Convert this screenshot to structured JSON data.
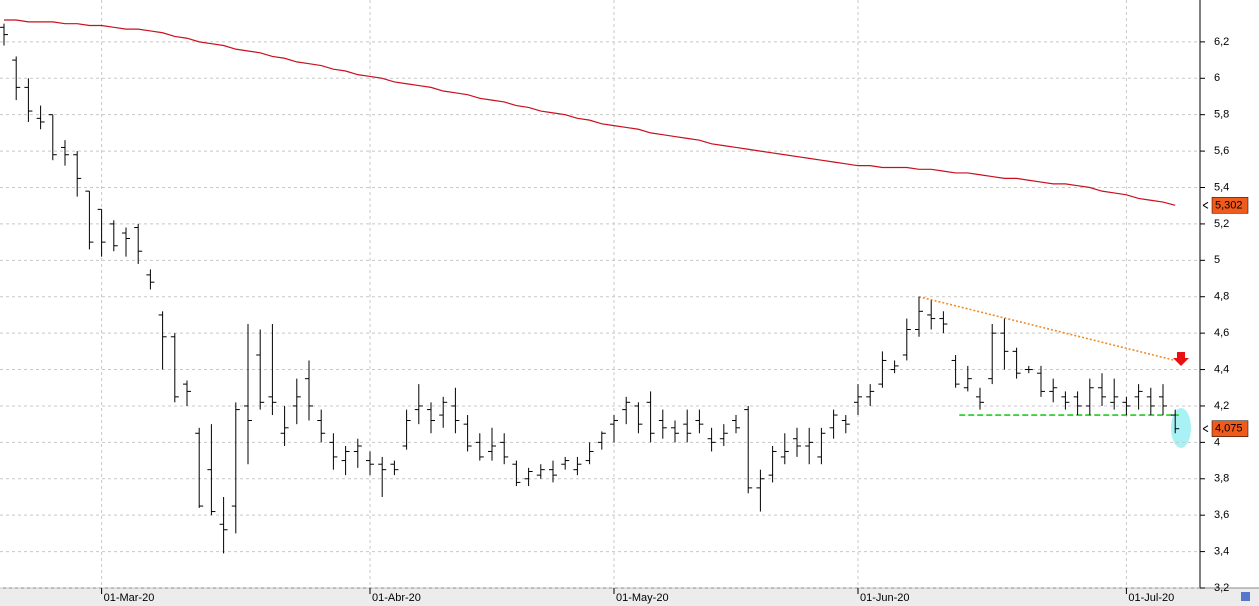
{
  "chart_data": {
    "type": "ohlc",
    "categories": [
      null,
      null,
      null,
      null,
      null,
      null,
      null,
      null,
      "01-Mar-20",
      null,
      null,
      null,
      null,
      null,
      null,
      null,
      null,
      null,
      null,
      null,
      null,
      null,
      null,
      null,
      null,
      null,
      null,
      null,
      null,
      null,
      "01-Abr-20",
      null,
      null,
      null,
      null,
      null,
      null,
      null,
      null,
      null,
      null,
      null,
      null,
      null,
      null,
      null,
      null,
      null,
      null,
      null,
      "01-May-20",
      null,
      null,
      null,
      null,
      null,
      null,
      null,
      null,
      null,
      null,
      null,
      null,
      null,
      null,
      null,
      null,
      null,
      null,
      null,
      "01-Jun-20",
      null,
      null,
      null,
      null,
      null,
      null,
      null,
      null,
      null,
      null,
      null,
      null,
      null,
      null,
      null,
      null,
      null,
      null,
      null,
      null,
      null,
      "01-Jul-20",
      null,
      null,
      null,
      null
    ],
    "ohlc": {
      "color": "#000000",
      "open": [
        6.28,
        6.1,
        5.95,
        5.78,
        5.8,
        5.62,
        5.58,
        5.38,
        5.28,
        5.2,
        5.15,
        5.18,
        4.92,
        4.7,
        4.58,
        4.32,
        4.05,
        3.85,
        3.55,
        3.65,
        4.2,
        4.48,
        4.25,
        4.05,
        4.2,
        4.35,
        4.12,
        4.0,
        3.9,
        3.95,
        3.9,
        3.88,
        3.88,
        3.98,
        4.18,
        4.18,
        4.15,
        4.2,
        4.1,
        4.0,
        3.95,
        4.0,
        3.88,
        3.8,
        3.82,
        3.85,
        3.88,
        3.85,
        3.9,
        4.0,
        4.1,
        4.18,
        4.2,
        4.22,
        4.12,
        4.08,
        4.1,
        4.12,
        4.02,
        4.02,
        4.12,
        4.18,
        3.75,
        3.82,
        3.92,
        4.02,
        3.98,
        3.92,
        4.08,
        4.12,
        4.22,
        4.25,
        4.32,
        4.4,
        4.48,
        4.62,
        4.7,
        4.68,
        4.45,
        4.3,
        4.25,
        4.35,
        4.6,
        4.5,
        4.4,
        4.38,
        4.28,
        4.25,
        4.25,
        4.2,
        4.3,
        4.22,
        4.22,
        4.25,
        4.25,
        4.25,
        4.15
      ],
      "high": [
        6.3,
        6.12,
        6.0,
        5.85,
        5.8,
        5.66,
        5.6,
        5.38,
        5.28,
        5.22,
        5.18,
        5.2,
        4.95,
        4.72,
        4.6,
        4.34,
        4.08,
        4.1,
        3.7,
        4.22,
        4.65,
        4.62,
        4.65,
        4.2,
        4.35,
        4.45,
        4.18,
        4.05,
        3.98,
        4.02,
        3.95,
        3.92,
        3.9,
        4.18,
        4.32,
        4.22,
        4.25,
        4.3,
        4.15,
        4.05,
        4.08,
        4.05,
        3.9,
        3.86,
        3.88,
        3.9,
        3.92,
        3.92,
        4.0,
        4.06,
        4.15,
        4.25,
        4.22,
        4.28,
        4.18,
        4.12,
        4.18,
        4.18,
        4.08,
        4.1,
        4.15,
        4.2,
        3.85,
        3.98,
        4.05,
        4.08,
        4.08,
        4.08,
        4.18,
        4.15,
        4.32,
        4.32,
        4.5,
        4.45,
        4.68,
        4.8,
        4.78,
        4.72,
        4.48,
        4.42,
        4.3,
        4.65,
        4.68,
        4.52,
        4.42,
        4.42,
        4.35,
        4.28,
        4.28,
        4.35,
        4.38,
        4.35,
        4.25,
        4.32,
        4.3,
        4.32,
        4.18
      ],
      "low": [
        6.18,
        5.88,
        5.76,
        5.72,
        5.55,
        5.52,
        5.35,
        5.06,
        5.02,
        5.05,
        5.02,
        4.98,
        4.84,
        4.4,
        4.22,
        4.2,
        3.64,
        3.6,
        3.39,
        3.5,
        3.88,
        4.18,
        4.15,
        3.98,
        4.1,
        4.12,
        4.0,
        3.85,
        3.82,
        3.86,
        3.82,
        3.7,
        3.82,
        3.96,
        4.1,
        4.05,
        4.08,
        4.05,
        3.95,
        3.9,
        3.9,
        3.88,
        3.76,
        3.76,
        3.8,
        3.78,
        3.85,
        3.82,
        3.88,
        3.96,
        4.0,
        4.1,
        4.05,
        4.0,
        4.02,
        4.0,
        4.0,
        4.05,
        3.95,
        3.98,
        4.05,
        3.72,
        3.62,
        3.78,
        3.88,
        3.92,
        3.88,
        3.88,
        4.02,
        4.05,
        4.15,
        4.2,
        4.3,
        4.38,
        4.45,
        4.58,
        4.62,
        4.6,
        4.3,
        4.28,
        4.18,
        4.32,
        4.4,
        4.35,
        4.38,
        4.25,
        4.22,
        4.18,
        4.15,
        4.15,
        4.2,
        4.18,
        4.15,
        4.18,
        4.15,
        4.15,
        4.05
      ],
      "close": [
        6.24,
        5.95,
        5.82,
        5.76,
        5.58,
        5.58,
        5.45,
        5.1,
        5.1,
        5.08,
        5.12,
        5.05,
        4.88,
        4.58,
        4.25,
        4.28,
        3.65,
        3.62,
        3.52,
        4.18,
        4.12,
        4.22,
        4.22,
        4.08,
        4.25,
        4.2,
        4.05,
        3.92,
        3.95,
        3.98,
        3.88,
        3.85,
        3.85,
        4.12,
        4.2,
        4.12,
        4.22,
        4.12,
        3.98,
        3.92,
        3.98,
        3.92,
        3.78,
        3.84,
        3.85,
        3.82,
        3.9,
        3.88,
        3.95,
        4.05,
        4.12,
        4.22,
        4.1,
        4.05,
        4.08,
        4.05,
        4.05,
        4.1,
        4.0,
        4.05,
        4.08,
        3.75,
        3.8,
        3.95,
        3.95,
        3.98,
        4.0,
        4.05,
        4.15,
        4.1,
        4.25,
        4.28,
        4.45,
        4.42,
        4.62,
        4.72,
        4.68,
        4.65,
        4.32,
        4.35,
        4.22,
        4.6,
        4.5,
        4.38,
        4.4,
        4.28,
        4.3,
        4.22,
        4.2,
        4.3,
        4.25,
        4.25,
        4.2,
        4.28,
        4.2,
        4.2,
        4.075
      ],
      "last_label": "4,075",
      "label_color": "#f05a1a"
    },
    "lines": [
      {
        "color": "#c8101e",
        "values": [
          6.32,
          6.32,
          6.31,
          6.31,
          6.31,
          6.3,
          6.3,
          6.29,
          6.29,
          6.28,
          6.27,
          6.27,
          6.26,
          6.25,
          6.23,
          6.22,
          6.2,
          6.19,
          6.18,
          6.16,
          6.15,
          6.14,
          6.12,
          6.11,
          6.09,
          6.08,
          6.07,
          6.05,
          6.04,
          6.02,
          6.01,
          6.0,
          5.98,
          5.97,
          5.96,
          5.95,
          5.93,
          5.92,
          5.91,
          5.89,
          5.88,
          5.87,
          5.85,
          5.84,
          5.82,
          5.81,
          5.8,
          5.78,
          5.77,
          5.75,
          5.74,
          5.73,
          5.72,
          5.7,
          5.69,
          5.68,
          5.67,
          5.66,
          5.64,
          5.63,
          5.62,
          5.61,
          5.6,
          5.59,
          5.58,
          5.57,
          5.56,
          5.55,
          5.54,
          5.53,
          5.52,
          5.52,
          5.51,
          5.51,
          5.51,
          5.5,
          5.5,
          5.49,
          5.48,
          5.48,
          5.47,
          5.46,
          5.45,
          5.45,
          5.44,
          5.43,
          5.42,
          5.42,
          5.41,
          5.4,
          5.38,
          5.37,
          5.36,
          5.34,
          5.33,
          5.32,
          5.302
        ],
        "last_label": "5,302",
        "label_color": "#f05a1a"
      }
    ],
    "trendlines": [
      {
        "color": "#f08c2a",
        "dash": "2,2",
        "start": {
          "index": 75,
          "value": 4.8
        },
        "end": {
          "index": 96,
          "value": 4.45
        }
      },
      {
        "color": "#22cc22",
        "dash": "6,3",
        "start": {
          "index": 78.3,
          "value": 4.15
        },
        "end": {
          "index": 96.3,
          "value": 4.15
        }
      }
    ],
    "ylim": [
      3.2,
      6.43
    ],
    "yticks": [
      {
        "value": 3.2,
        "label": "3,2"
      },
      {
        "value": 3.4,
        "label": "3,4"
      },
      {
        "value": 3.6,
        "label": "3,6"
      },
      {
        "value": 3.8,
        "label": "3,8"
      },
      4,
      {
        "value": 4.2,
        "label": "4,2"
      },
      {
        "value": 4.4,
        "label": "4,4"
      },
      {
        "value": 4.6,
        "label": "4,6"
      },
      {
        "value": 4.8,
        "label": "4,8"
      },
      5,
      {
        "value": 5.2,
        "label": "5,2"
      },
      {
        "value": 5.4,
        "label": "5,4"
      },
      {
        "value": 5.6,
        "label": "5,6"
      },
      {
        "value": 5.8,
        "label": "5,8"
      },
      6,
      {
        "value": 6.2,
        "label": "6,2"
      }
    ],
    "grid": true
  }
}
